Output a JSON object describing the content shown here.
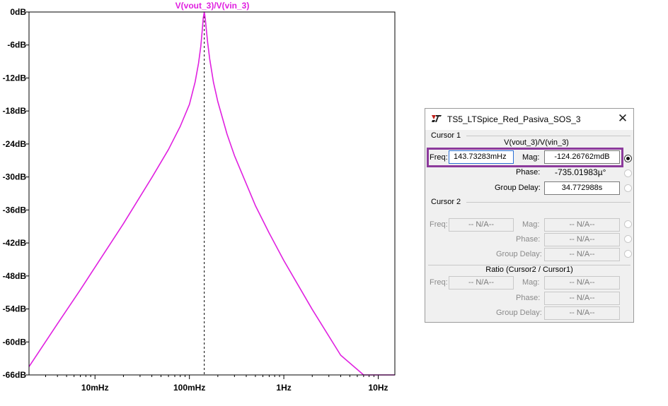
{
  "chart_data": {
    "type": "line",
    "title": "V(vout_3)/V(vin_3)",
    "xscale": "log",
    "xlim_hz": [
      0.002,
      15
    ],
    "ylim_db": [
      -66,
      0
    ],
    "x_tick_values_hz": [
      0.01,
      0.1,
      1,
      10
    ],
    "x_tick_labels": [
      "10mHz",
      "100mHz",
      "1Hz",
      "10Hz"
    ],
    "y_tick_values_db": [
      0,
      -6,
      -12,
      -18,
      -24,
      -30,
      -36,
      -42,
      -48,
      -54,
      -60,
      -66
    ],
    "y_tick_labels": [
      "0dB",
      "-6dB",
      "-12dB",
      "-18dB",
      "-24dB",
      "-30dB",
      "-36dB",
      "-42dB",
      "-48dB",
      "-54dB",
      "-60dB",
      "-66dB"
    ],
    "grid": false,
    "cursor_freq_hz": 0.1437,
    "trace_color": "#e020e0",
    "series": [
      {
        "name": "V(vout_3)/V(vin_3)",
        "x_hz": [
          0.002,
          0.004,
          0.007,
          0.01,
          0.02,
          0.04,
          0.06,
          0.08,
          0.1,
          0.115,
          0.125,
          0.132,
          0.137,
          0.14,
          0.1437,
          0.147,
          0.151,
          0.156,
          0.164,
          0.18,
          0.2,
          0.25,
          0.3,
          0.5,
          0.7,
          1,
          2,
          4,
          7,
          10,
          15
        ],
        "y_db": [
          -64.5,
          -56.7,
          -50.5,
          -46.4,
          -38.5,
          -30.1,
          -25,
          -20.8,
          -16.8,
          -12.7,
          -9.3,
          -6.2,
          -3.2,
          -1.1,
          0,
          -1.1,
          -3.2,
          -5.5,
          -8.5,
          -12.8,
          -16.3,
          -22.2,
          -26.1,
          -35.2,
          -40.2,
          -45.2,
          -54.1,
          -62.4,
          -66,
          -66,
          -66
        ]
      }
    ]
  },
  "dialog": {
    "title": "TS5_LTSpice_Red_Pasiva_SOS_3",
    "close_glyph": "✕",
    "cursor1": {
      "group_label": "Cursor 1",
      "trace_label": "V(vout_3)/V(vin_3)",
      "freq_label": "Freq:",
      "freq_value": "143.73283mHz",
      "mag_label": "Mag:",
      "mag_value": "-124.26762mdB",
      "phase_label": "Phase:",
      "phase_value": "-735.01983µ°",
      "group_delay_label": "Group Delay:",
      "group_delay_value": "34.772988s"
    },
    "cursor2": {
      "group_label": "Cursor 2",
      "freq_label": "Freq:",
      "freq_value": "-- N/A--",
      "mag_label": "Mag:",
      "mag_value": "-- N/A--",
      "phase_label": "Phase:",
      "phase_value": "-- N/A--",
      "group_delay_label": "Group Delay:",
      "group_delay_value": "-- N/A--"
    },
    "ratio": {
      "label": "Ratio (Cursor2 / Cursor1)",
      "freq_label": "Freq:",
      "freq_value": "-- N/A--",
      "mag_label": "Mag:",
      "mag_value": "-- N/A--",
      "phase_label": "Phase:",
      "phase_value": "-- N/A--",
      "group_delay_label": "Group Delay:",
      "group_delay_value": "-- N/A--"
    },
    "highlight_color": "#8c3a9c"
  }
}
